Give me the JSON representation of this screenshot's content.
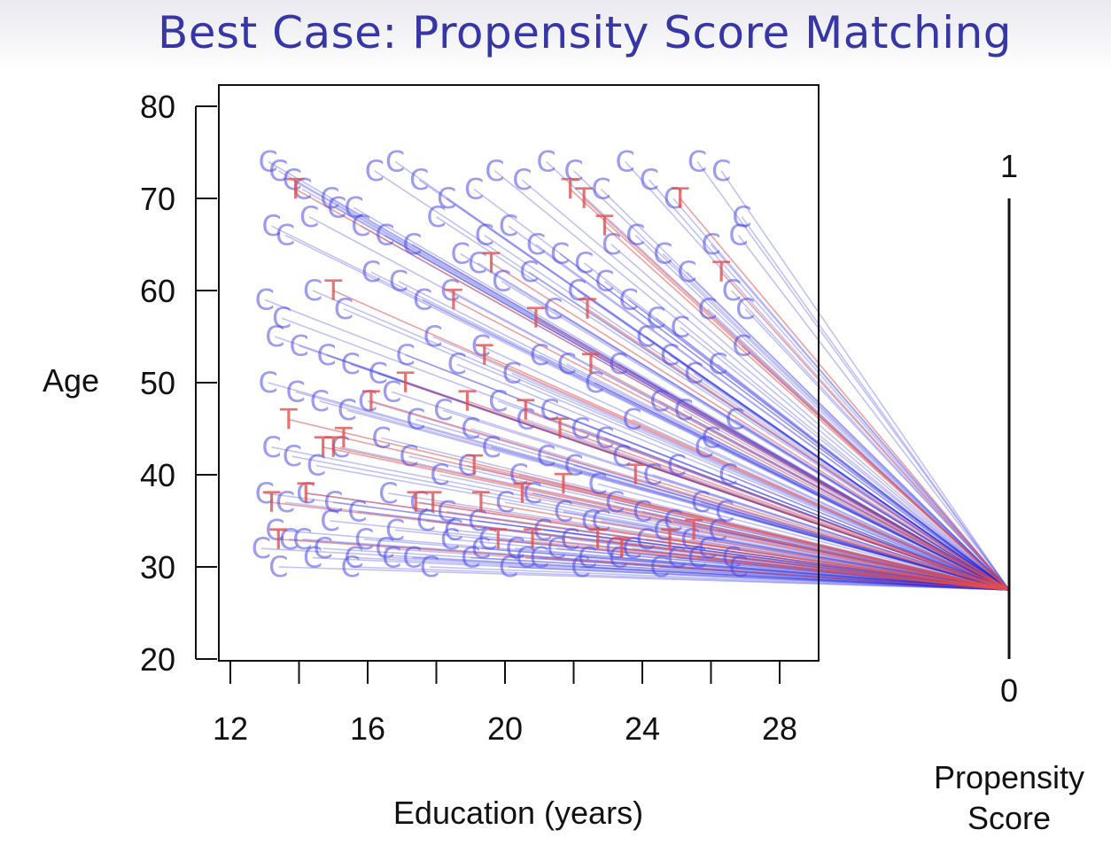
{
  "title": "Best Case: Propensity Score Matching",
  "chart_data": {
    "type": "scatter",
    "title": "Best Case: Propensity Score Matching",
    "xlabel": "Education (years)",
    "ylabel": "Age",
    "xlim": [
      11.5,
      29.2
    ],
    "ylim": [
      20,
      82
    ],
    "x_ticks": [
      "12",
      "16",
      "20",
      "24",
      "28"
    ],
    "y_ticks": [
      "20",
      "30",
      "40",
      "50",
      "60",
      "70",
      "80"
    ],
    "propensity_axis": {
      "label": "Propensity Score",
      "top_label": "1",
      "bottom_label": "0",
      "match_value": 0.15
    },
    "colors": {
      "control": "#4a4ae6",
      "treated": "#e05050",
      "title": "#3636a6",
      "line": "#2020e0"
    },
    "series": [
      {
        "name": "C",
        "x": [
          13.1,
          13.4,
          13.8,
          14.1,
          14.9,
          15.6,
          16.2,
          16.8,
          17.5,
          18.3,
          19.1,
          19.7,
          20.5,
          21.2,
          22.0,
          22.8,
          23.5,
          24.2,
          24.9,
          25.6,
          26.3,
          26.9,
          13.2,
          13.6,
          14.3,
          15.1,
          15.8,
          16.5,
          17.3,
          18.0,
          18.7,
          19.4,
          20.1,
          20.9,
          21.6,
          22.3,
          23.1,
          23.8,
          24.6,
          25.3,
          26.0,
          26.8,
          13.0,
          13.5,
          14.4,
          15.3,
          16.1,
          16.9,
          17.6,
          18.4,
          19.2,
          19.9,
          20.7,
          21.4,
          22.1,
          22.9,
          23.6,
          24.4,
          25.1,
          25.9,
          26.6,
          27.0,
          13.3,
          14.0,
          14.8,
          15.5,
          16.3,
          17.1,
          17.9,
          18.6,
          19.3,
          20.2,
          21.0,
          21.8,
          22.6,
          23.3,
          24.1,
          24.8,
          25.5,
          26.2,
          26.9,
          13.1,
          13.9,
          14.6,
          15.4,
          16.0,
          16.7,
          17.4,
          18.2,
          19.0,
          19.8,
          20.6,
          21.3,
          22.2,
          22.9,
          23.7,
          24.5,
          25.2,
          26.0,
          26.7,
          13.2,
          13.8,
          14.5,
          15.2,
          16.4,
          17.2,
          18.1,
          18.9,
          19.6,
          20.4,
          21.2,
          22.0,
          22.7,
          23.4,
          24.3,
          25.0,
          25.8,
          26.5,
          13.0,
          13.6,
          14.2,
          15.0,
          15.7,
          16.6,
          17.5,
          18.3,
          19.2,
          20.0,
          20.8,
          21.7,
          22.5,
          23.2,
          24.0,
          24.9,
          25.7,
          26.4,
          13.3,
          14.1,
          14.9,
          15.9,
          16.8,
          17.7,
          18.5,
          19.5,
          20.3,
          21.1,
          21.9,
          22.8,
          23.7,
          24.6,
          25.4,
          26.2,
          12.9,
          13.7,
          14.7,
          15.6,
          16.5,
          17.3,
          18.4,
          19.3,
          20.6,
          21.5,
          22.4,
          23.2,
          24.1,
          25.0,
          25.9,
          26.6,
          13.4,
          14.4,
          15.5,
          16.7,
          17.8,
          19.0,
          20.1,
          21.0,
          22.2,
          23.3,
          24.5,
          25.6,
          26.8
        ],
        "y": [
          74,
          73,
          72,
          71,
          70,
          69,
          73,
          74,
          72,
          70,
          71,
          73,
          72,
          74,
          73,
          71,
          74,
          72,
          70,
          74,
          73,
          68,
          67,
          66,
          68,
          69,
          67,
          66,
          65,
          68,
          64,
          66,
          67,
          65,
          64,
          63,
          65,
          66,
          64,
          62,
          65,
          66,
          59,
          57,
          60,
          58,
          62,
          61,
          59,
          60,
          63,
          61,
          62,
          58,
          60,
          61,
          59,
          57,
          56,
          58,
          60,
          58,
          55,
          54,
          53,
          52,
          51,
          53,
          55,
          52,
          54,
          51,
          53,
          52,
          50,
          52,
          55,
          53,
          51,
          52,
          54,
          50,
          49,
          48,
          47,
          48,
          49,
          46,
          47,
          45,
          48,
          46,
          47,
          45,
          44,
          46,
          48,
          47,
          44,
          46,
          43,
          42,
          41,
          43,
          44,
          42,
          40,
          41,
          43,
          40,
          42,
          41,
          39,
          42,
          40,
          41,
          43,
          40,
          38,
          37,
          38,
          37,
          36,
          38,
          37,
          36,
          35,
          37,
          38,
          36,
          35,
          37,
          36,
          35,
          37,
          36,
          34,
          33,
          35,
          33,
          34,
          35,
          34,
          33,
          32,
          34,
          33,
          35,
          32,
          34,
          33,
          34,
          32,
          33,
          32,
          31,
          32,
          31,
          33,
          32,
          31,
          32,
          31,
          32,
          33,
          31,
          32,
          31,
          30,
          31,
          30,
          31,
          30,
          31,
          30,
          31,
          30,
          31,
          30,
          31,
          30
        ]
      },
      {
        "name": "T",
        "x": [
          13.9,
          21.9,
          22.3,
          22.9,
          25.1,
          26.3,
          15.0,
          18.5,
          19.6,
          20.9,
          22.4,
          17.1,
          19.4,
          22.5,
          13.7,
          15.3,
          16.1,
          18.9,
          20.6,
          21.6,
          14.7,
          15.0,
          19.1,
          20.5,
          21.7,
          23.8,
          14.2,
          13.2,
          17.4,
          17.9,
          19.3,
          20.8,
          22.7,
          24.8,
          13.4,
          19.8,
          23.4,
          25.5
        ],
        "y": [
          71,
          71,
          70,
          67,
          70,
          62,
          60,
          59,
          63,
          57,
          58,
          50,
          53,
          52,
          46,
          44,
          48,
          48,
          47,
          45,
          43,
          43,
          41,
          38,
          39,
          40,
          38,
          37,
          37,
          37,
          37,
          33,
          33,
          33,
          33,
          33,
          32,
          34
        ]
      }
    ]
  }
}
